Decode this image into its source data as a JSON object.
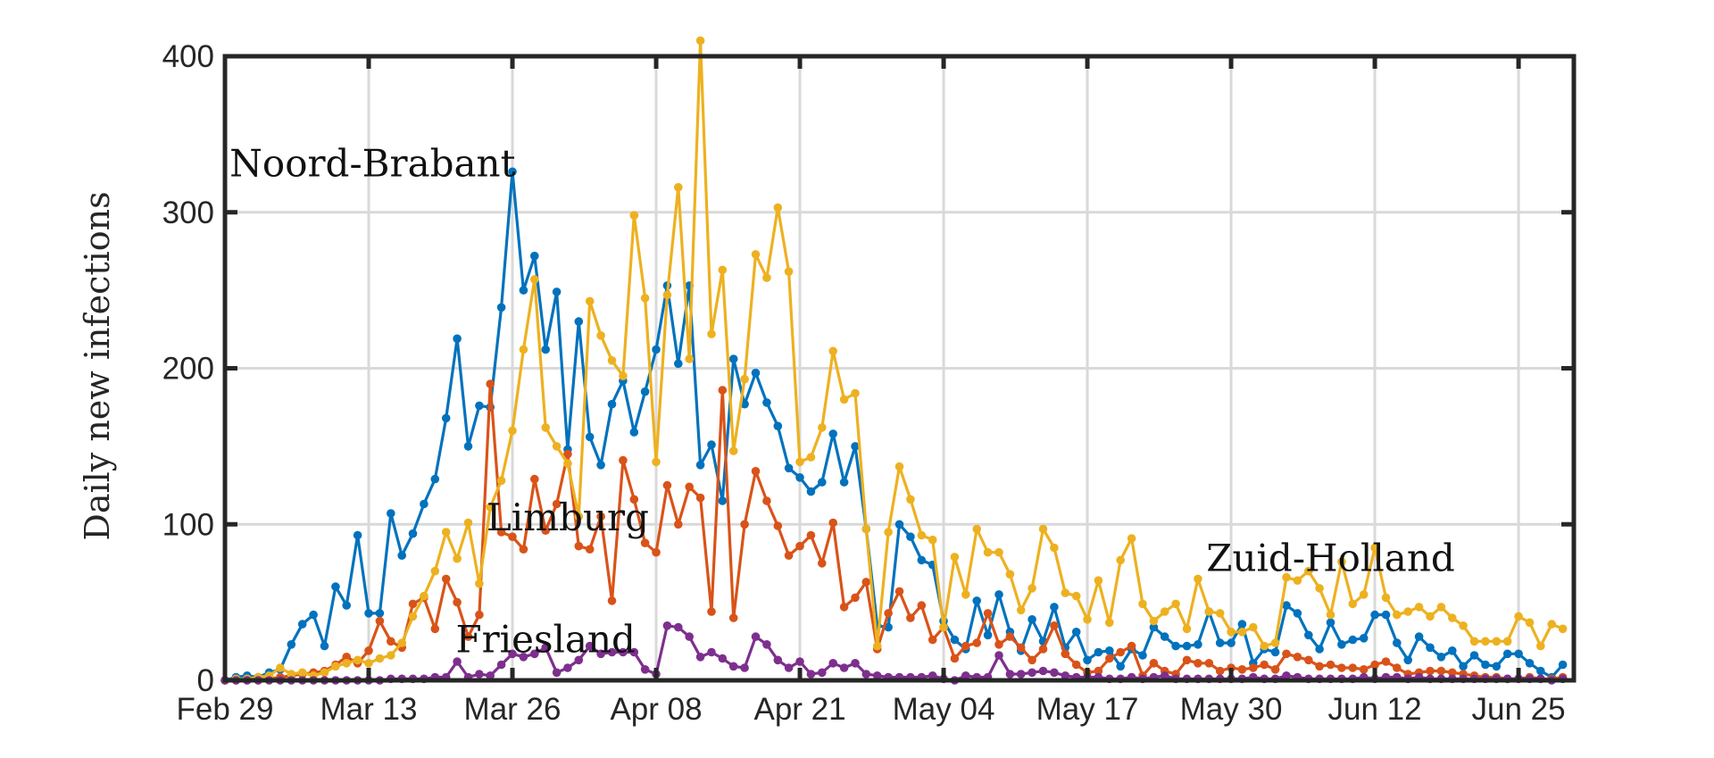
{
  "chart_data": {
    "type": "line",
    "title": "",
    "xlabel": "",
    "ylabel": "Daily new infections",
    "x_tick_labels": [
      "Feb 29",
      "Mar 13",
      "Mar 26",
      "Apr 08",
      "Apr 21",
      "May 04",
      "May 17",
      "May 30",
      "Jun 12",
      "Jun 25"
    ],
    "y_tick_labels": [
      "0",
      "100",
      "200",
      "300",
      "400"
    ],
    "xlim": [
      "2020-02-29",
      "2020-06-30"
    ],
    "ylim": [
      0,
      400
    ],
    "grid": true,
    "legend": "none",
    "start_date": "2020-02-29",
    "annotations": [
      {
        "text": "Noord-Brabant",
        "date": "2020-03-19",
        "value": 322,
        "series": "Noord-Brabant"
      },
      {
        "text": "Limburg",
        "date": "2020-03-31",
        "value": 95,
        "series": "Limburg"
      },
      {
        "text": "Friesland",
        "date": "2020-03-29",
        "value": 17,
        "series": "Friesland"
      },
      {
        "text": "Zuid-Holland",
        "date": "2020-06-08",
        "value": 69,
        "series": "Zuid-Holland"
      }
    ],
    "series": [
      {
        "name": "Noord-Brabant",
        "color": "#0072BD",
        "values": [
          0,
          2,
          3,
          2,
          5,
          7,
          23,
          36,
          42,
          22,
          60,
          48,
          93,
          43,
          43,
          107,
          80,
          94,
          113,
          129,
          168,
          219,
          150,
          176,
          175,
          239,
          326,
          250,
          272,
          212,
          249,
          148,
          230,
          156,
          138,
          177,
          192,
          159,
          185,
          212,
          253,
          203,
          253,
          138,
          151,
          115,
          206,
          177,
          197,
          178,
          163,
          136,
          130,
          121,
          127,
          158,
          127,
          150,
          97,
          35,
          34,
          100,
          92,
          77,
          74,
          38,
          26,
          20,
          51,
          29,
          55,
          31,
          19,
          39,
          25,
          47,
          21,
          31,
          13,
          18,
          19,
          9,
          20,
          16,
          34,
          28,
          22,
          22,
          23,
          44,
          24,
          24,
          36,
          11,
          20,
          18,
          48,
          43,
          29,
          20,
          37,
          23,
          26,
          27,
          42,
          42,
          24,
          13,
          28,
          21,
          15,
          19,
          9,
          16,
          10,
          9,
          17,
          17,
          11,
          6,
          2,
          10
        ]
      },
      {
        "name": "Limburg",
        "color": "#D95319",
        "values": [
          0,
          0,
          0,
          0,
          1,
          2,
          3,
          4,
          5,
          6,
          10,
          15,
          11,
          19,
          38,
          25,
          21,
          49,
          53,
          33,
          65,
          50,
          28,
          42,
          190,
          95,
          92,
          84,
          129,
          96,
          113,
          145,
          86,
          84,
          105,
          51,
          141,
          116,
          88,
          82,
          125,
          100,
          124,
          117,
          44,
          186,
          40,
          100,
          134,
          115,
          99,
          80,
          86,
          93,
          75,
          101,
          47,
          53,
          63,
          20,
          43,
          57,
          40,
          48,
          26,
          34,
          14,
          22,
          24,
          43,
          23,
          28,
          21,
          13,
          20,
          35,
          17,
          10,
          5,
          6,
          14,
          18,
          22,
          3,
          11,
          6,
          4,
          13,
          11,
          11,
          6,
          8,
          7,
          8,
          10,
          7,
          17,
          15,
          13,
          9,
          10,
          8,
          8,
          7,
          10,
          12,
          8,
          4,
          5,
          6,
          6,
          5,
          4,
          3,
          2,
          2,
          1,
          1,
          2,
          1,
          1,
          2
        ]
      },
      {
        "name": "Zuid-Holland",
        "color": "#EDB120",
        "values": [
          0,
          1,
          1,
          2,
          3,
          8,
          4,
          5,
          3,
          5,
          9,
          11,
          13,
          11,
          14,
          16,
          24,
          41,
          54,
          70,
          95,
          78,
          101,
          62,
          111,
          128,
          160,
          212,
          257,
          162,
          150,
          139,
          105,
          243,
          221,
          205,
          195,
          298,
          245,
          140,
          247,
          316,
          206,
          410,
          222,
          263,
          147,
          193,
          273,
          258,
          303,
          262,
          140,
          143,
          162,
          211,
          180,
          184,
          97,
          22,
          95,
          137,
          116,
          93,
          90,
          34,
          79,
          55,
          97,
          82,
          82,
          68,
          45,
          59,
          97,
          85,
          56,
          54,
          39,
          64,
          37,
          77,
          91,
          49,
          38,
          44,
          49,
          33,
          65,
          44,
          43,
          31,
          31,
          34,
          22,
          24,
          66,
          64,
          70,
          59,
          42,
          76,
          49,
          55,
          85,
          53,
          42,
          44,
          47,
          41,
          47,
          40,
          35,
          25,
          25,
          25,
          25,
          41,
          37,
          22,
          36,
          33
        ]
      },
      {
        "name": "Friesland",
        "color": "#7E2F8E",
        "values": [
          0,
          0,
          0,
          0,
          0,
          0,
          0,
          0,
          0,
          0,
          0,
          0,
          0,
          0,
          0,
          1,
          1,
          1,
          1,
          2,
          2,
          12,
          2,
          4,
          3,
          10,
          17,
          15,
          17,
          21,
          5,
          8,
          13,
          22,
          17,
          18,
          18,
          18,
          7,
          4,
          35,
          34,
          28,
          15,
          18,
          14,
          9,
          8,
          28,
          23,
          13,
          8,
          12,
          4,
          5,
          11,
          8,
          11,
          4,
          3,
          2,
          2,
          2,
          2,
          3,
          1,
          0,
          3,
          2,
          2,
          16,
          4,
          4,
          5,
          6,
          5,
          3,
          2,
          2,
          2,
          1,
          1,
          2,
          1,
          2,
          3,
          1,
          1,
          1,
          1,
          1,
          1,
          1,
          2,
          1,
          1,
          3,
          2,
          1,
          1,
          1,
          1,
          1,
          2,
          1,
          2,
          2,
          1,
          2,
          1,
          1,
          1,
          1,
          1,
          1,
          1,
          1,
          1,
          1,
          1,
          0,
          1
        ]
      }
    ]
  }
}
